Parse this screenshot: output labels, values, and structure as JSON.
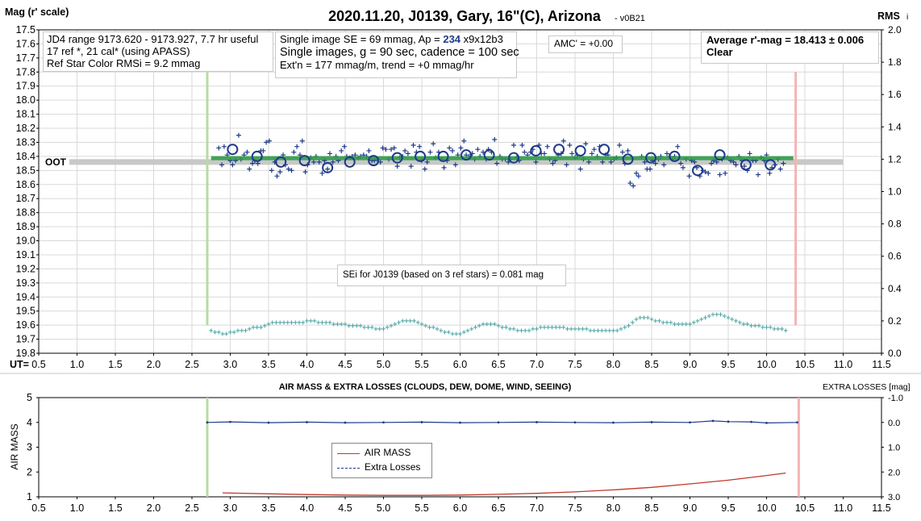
{
  "chart_data": [
    {
      "type": "scatter",
      "title": "2020.11.20, J0139, Gary, 16\"(C), Arizona",
      "version": "- v0B21",
      "ylabel": "Mag (r' scale)",
      "y2label": "RMS",
      "y2label_suffix": "i",
      "xlabel": "UT=",
      "xlim": [
        0.5,
        11.5
      ],
      "ylim": [
        17.5,
        19.8
      ],
      "y_inverted": true,
      "y2lim": [
        0.0,
        2.0
      ],
      "x_ticks": [
        "0.5",
        "1.0",
        "1.5",
        "2.0",
        "2.5",
        "3.0",
        "3.5",
        "4.0",
        "4.5",
        "5.0",
        "5.5",
        "6.0",
        "6.5",
        "7.0",
        "7.5",
        "8.0",
        "8.5",
        "9.0",
        "9.5",
        "10.0",
        "10.5",
        "11.0",
        "11.5"
      ],
      "y_ticks": [
        "17.5",
        "17.6",
        "17.7",
        "17.8",
        "17.9",
        "18.0",
        "18.1",
        "18.2",
        "18.3",
        "18.4",
        "18.5",
        "18.6",
        "18.7",
        "18.8",
        "18.9",
        "19.0",
        "19.1",
        "19.2",
        "19.3",
        "19.4",
        "19.5",
        "19.6",
        "19.7",
        "19.8"
      ],
      "y2_ticks": [
        "2.0",
        "1.8",
        "1.6",
        "1.4",
        "1.2",
        "1.0",
        "0.8",
        "0.6",
        "0.4",
        "0.2",
        "0.0"
      ],
      "grid": true,
      "oot_label": "OOT",
      "oot_mag": 18.44,
      "oot_x": [
        0.9,
        11.0
      ],
      "fit_mag": 18.413,
      "fit_x": [
        2.75,
        10.35
      ],
      "ingress_ut": 2.7,
      "egress_ut": 10.38,
      "marker_range": [
        19.6,
        17.8
      ],
      "single_images": {
        "x": [
          2.85,
          2.89,
          2.92,
          2.96,
          3.0,
          3.03,
          3.07,
          3.11,
          3.14,
          3.18,
          3.22,
          3.25,
          3.29,
          3.32,
          3.36,
          3.4,
          3.43,
          3.47,
          3.51,
          3.54,
          3.58,
          3.61,
          3.65,
          3.69,
          3.72,
          3.76,
          3.8,
          3.83,
          3.87,
          3.91,
          3.94,
          3.98,
          4.01,
          4.05,
          4.09,
          4.12,
          4.16,
          4.2,
          4.23,
          4.27,
          4.3,
          4.34,
          4.38,
          4.41,
          4.45,
          4.49,
          4.52,
          4.56,
          4.59,
          4.63,
          4.67,
          4.7,
          4.74,
          4.78,
          4.81,
          4.85,
          4.88,
          4.92,
          4.96,
          4.99,
          5.03,
          5.07,
          5.1,
          5.14,
          5.18,
          5.21,
          5.25,
          5.28,
          5.32,
          5.36,
          5.39,
          5.43,
          5.47,
          5.5,
          5.54,
          5.57,
          5.61,
          5.65,
          5.68,
          5.72,
          5.76,
          5.79,
          5.83,
          5.86,
          5.9,
          5.94,
          5.97,
          6.01,
          6.05,
          6.08,
          6.12,
          6.16,
          6.19,
          6.23,
          6.26,
          6.3,
          6.34,
          6.37,
          6.41,
          6.45,
          6.48,
          6.52,
          6.55,
          6.59,
          6.63,
          6.66,
          6.7,
          6.74,
          6.77,
          6.81,
          6.84,
          6.88,
          6.92,
          6.95,
          6.99,
          7.03,
          7.06,
          7.1,
          7.14,
          7.17,
          7.21,
          7.24,
          7.28,
          7.32,
          7.35,
          7.39,
          7.43,
          7.46,
          7.5,
          7.53,
          7.57,
          7.61,
          7.64,
          7.68,
          7.72,
          7.75,
          7.79,
          7.82,
          7.86,
          7.9,
          7.93,
          7.97,
          8.01,
          8.04,
          8.08,
          8.12,
          8.15,
          8.19,
          8.22,
          8.26,
          8.3,
          8.33,
          8.37,
          8.41,
          8.44,
          8.48,
          8.51,
          8.55,
          8.59,
          8.62,
          8.66,
          8.7,
          8.73,
          8.77,
          8.8,
          8.84,
          8.88,
          8.91,
          8.95,
          8.99,
          9.02,
          9.06,
          9.09,
          9.13,
          9.17,
          9.2,
          9.24,
          9.28,
          9.31,
          9.35,
          9.39,
          9.42,
          9.46,
          9.49,
          9.53,
          9.57,
          9.6,
          9.64,
          9.68,
          9.71,
          9.75,
          9.78,
          9.82,
          9.86,
          9.89,
          9.93,
          9.97,
          10.0,
          10.04,
          10.07,
          10.11,
          10.15,
          10.18,
          10.22
        ],
        "y": [
          18.34,
          18.46,
          18.33,
          18.39,
          18.43,
          18.46,
          18.43,
          18.25,
          18.42,
          18.39,
          18.37,
          18.49,
          18.45,
          18.43,
          18.45,
          18.36,
          18.36,
          18.3,
          18.29,
          18.5,
          18.44,
          18.54,
          18.51,
          18.39,
          18.46,
          18.49,
          18.5,
          18.37,
          18.33,
          18.39,
          18.29,
          18.51,
          18.46,
          18.41,
          18.44,
          18.4,
          18.44,
          18.52,
          18.43,
          18.49,
          18.38,
          18.44,
          18.4,
          18.43,
          18.36,
          18.33,
          18.4,
          18.41,
          18.4,
          18.39,
          18.41,
          18.4,
          18.39,
          18.4,
          18.36,
          18.43,
          18.43,
          18.42,
          18.44,
          18.34,
          18.35,
          18.42,
          18.35,
          18.34,
          18.47,
          18.41,
          18.4,
          18.36,
          18.38,
          18.47,
          18.32,
          18.37,
          18.33,
          18.43,
          18.49,
          18.44,
          18.37,
          18.31,
          18.41,
          18.37,
          18.42,
          18.48,
          18.43,
          18.34,
          18.36,
          18.46,
          18.39,
          18.34,
          18.29,
          18.39,
          18.4,
          18.38,
          18.42,
          18.35,
          18.4,
          18.37,
          18.42,
          18.35,
          18.37,
          18.28,
          18.45,
          18.4,
          18.42,
          18.42,
          18.44,
          18.42,
          18.32,
          18.41,
          18.43,
          18.32,
          18.37,
          18.39,
          18.37,
          18.35,
          18.44,
          18.32,
          18.38,
          18.38,
          18.33,
          18.42,
          18.45,
          18.43,
          18.39,
          18.38,
          18.29,
          18.46,
          18.32,
          18.38,
          18.41,
          18.39,
          18.49,
          18.42,
          18.31,
          18.44,
          18.38,
          18.35,
          18.4,
          18.33,
          18.44,
          18.39,
          18.39,
          18.44,
          18.42,
          18.41,
          18.32,
          18.37,
          18.45,
          18.36,
          18.59,
          18.61,
          18.52,
          18.54,
          18.4,
          18.44,
          18.49,
          18.49,
          18.43,
          18.45,
          18.42,
          18.4,
          18.46,
          18.38,
          18.4,
          18.42,
          18.4,
          18.33,
          18.45,
          18.48,
          18.42,
          18.54,
          18.43,
          18.44,
          18.48,
          18.54,
          18.5,
          18.51,
          18.52,
          18.45,
          18.43,
          18.44,
          18.53,
          18.42,
          18.52,
          18.41,
          18.43,
          18.44,
          18.46,
          18.4,
          18.43,
          18.47,
          18.5,
          18.38,
          18.43,
          18.43,
          18.53,
          18.41,
          18.43,
          18.39,
          18.52,
          18.48,
          18.46,
          18.42,
          18.49,
          18.45
        ]
      },
      "averaged_points": {
        "x": [
          3.03,
          3.35,
          3.66,
          3.97,
          4.27,
          4.56,
          4.87,
          5.18,
          5.48,
          5.78,
          6.08,
          6.38,
          6.7,
          6.99,
          7.29,
          7.57,
          7.88,
          8.19,
          8.49,
          8.8,
          9.1,
          9.39,
          9.73,
          10.05
        ],
        "y": [
          18.35,
          18.4,
          18.44,
          18.43,
          18.48,
          18.44,
          18.43,
          18.41,
          18.4,
          18.4,
          18.39,
          18.39,
          18.41,
          18.36,
          18.35,
          18.36,
          18.35,
          18.42,
          18.41,
          18.4,
          18.5,
          18.39,
          18.46,
          18.46
        ]
      },
      "rms_series": {
        "x": [
          2.75,
          2.8,
          2.85,
          2.9,
          2.95,
          3.0,
          3.05,
          3.1,
          3.15,
          3.2,
          3.25,
          3.3,
          3.35,
          3.4,
          3.45,
          3.5,
          3.55,
          3.6,
          3.65,
          3.7,
          3.75,
          3.8,
          3.85,
          3.9,
          3.95,
          4.0,
          4.05,
          4.1,
          4.15,
          4.2,
          4.25,
          4.3,
          4.35,
          4.4,
          4.45,
          4.5,
          4.55,
          4.6,
          4.65,
          4.7,
          4.75,
          4.8,
          4.85,
          4.9,
          4.95,
          5.0,
          5.05,
          5.1,
          5.15,
          5.2,
          5.25,
          5.3,
          5.35,
          5.4,
          5.45,
          5.5,
          5.55,
          5.6,
          5.65,
          5.7,
          5.75,
          5.8,
          5.85,
          5.9,
          5.95,
          6.0,
          6.05,
          6.1,
          6.15,
          6.2,
          6.25,
          6.3,
          6.35,
          6.4,
          6.45,
          6.5,
          6.55,
          6.6,
          6.65,
          6.7,
          6.75,
          6.8,
          6.85,
          6.9,
          6.95,
          7.0,
          7.05,
          7.1,
          7.15,
          7.2,
          7.25,
          7.3,
          7.35,
          7.4,
          7.45,
          7.5,
          7.55,
          7.6,
          7.65,
          7.7,
          7.75,
          7.8,
          7.85,
          7.9,
          7.95,
          8.0,
          8.05,
          8.1,
          8.15,
          8.2,
          8.25,
          8.3,
          8.35,
          8.4,
          8.45,
          8.5,
          8.55,
          8.6,
          8.65,
          8.7,
          8.75,
          8.8,
          8.85,
          8.9,
          8.95,
          9.0,
          9.05,
          9.1,
          9.15,
          9.2,
          9.25,
          9.3,
          9.35,
          9.4,
          9.45,
          9.5,
          9.55,
          9.6,
          9.65,
          9.7,
          9.75,
          9.8,
          9.85,
          9.9,
          9.95,
          10.0,
          10.05,
          10.1,
          10.15,
          10.2,
          10.25
        ],
        "y": [
          0.14,
          0.13,
          0.13,
          0.12,
          0.12,
          0.13,
          0.13,
          0.14,
          0.14,
          0.14,
          0.15,
          0.16,
          0.16,
          0.16,
          0.17,
          0.18,
          0.19,
          0.19,
          0.19,
          0.19,
          0.19,
          0.19,
          0.19,
          0.19,
          0.19,
          0.2,
          0.2,
          0.2,
          0.19,
          0.19,
          0.19,
          0.19,
          0.18,
          0.18,
          0.18,
          0.18,
          0.17,
          0.17,
          0.17,
          0.17,
          0.16,
          0.16,
          0.16,
          0.15,
          0.15,
          0.15,
          0.16,
          0.17,
          0.18,
          0.19,
          0.2,
          0.2,
          0.2,
          0.2,
          0.19,
          0.18,
          0.17,
          0.16,
          0.16,
          0.15,
          0.14,
          0.13,
          0.13,
          0.12,
          0.12,
          0.12,
          0.13,
          0.14,
          0.15,
          0.16,
          0.17,
          0.18,
          0.18,
          0.18,
          0.18,
          0.17,
          0.16,
          0.16,
          0.15,
          0.15,
          0.14,
          0.14,
          0.14,
          0.14,
          0.15,
          0.15,
          0.16,
          0.16,
          0.16,
          0.16,
          0.16,
          0.16,
          0.16,
          0.15,
          0.15,
          0.15,
          0.15,
          0.15,
          0.15,
          0.14,
          0.14,
          0.14,
          0.14,
          0.14,
          0.14,
          0.14,
          0.14,
          0.15,
          0.16,
          0.17,
          0.19,
          0.21,
          0.22,
          0.22,
          0.22,
          0.21,
          0.2,
          0.2,
          0.19,
          0.19,
          0.19,
          0.18,
          0.18,
          0.18,
          0.18,
          0.18,
          0.19,
          0.2,
          0.21,
          0.22,
          0.23,
          0.24,
          0.24,
          0.24,
          0.23,
          0.22,
          0.21,
          0.2,
          0.19,
          0.18,
          0.18,
          0.17,
          0.17,
          0.17,
          0.16,
          0.16,
          0.16,
          0.15,
          0.15,
          0.15,
          0.14
        ]
      },
      "annotations": {
        "box1": [
          "JD4 range 9173.620 - 9173.927, 7.7 hr useful",
          "17 ref *, 21 cal* (using APASS)",
          "Ref Star Color RMSi = 9.2 mmag"
        ],
        "box2_line1_prefix": "Single image SE = 69 mmag, Ap = ",
        "box2_ap": "234",
        "box2_line1_suffix": " x9x12b3",
        "box2_line2": "Single images, g = 90 sec, cadence = 100 sec",
        "box2_line3": "Ext'n = 177 mmag/m, trend = +0 mmag/hr",
        "amc": "AMC' = +0.00",
        "avg_line1": "Average r'-mag =  18.413 ± 0.006",
        "avg_line2": "Clear",
        "sei": "SEi for J0139 (based on 3 ref stars) = 0.081 mag"
      },
      "colors": {
        "points": "#1f3a8a",
        "fit": "#2e9a46",
        "oot": "#c8c8c8",
        "rms": "#4aa3a3",
        "ingress": "#b8dca0",
        "egress": "#f4b4b4",
        "ap_value": "#1f3a8a"
      }
    },
    {
      "type": "line",
      "title": "AIR MASS & EXTRA LOSSES (CLOUDS, DEW, DOME, WIND, SEEING)",
      "ylabel": "AIR MASS",
      "y2label": "EXTRA LOSSES",
      "y2label_unit": "[mag]",
      "xlim": [
        0.5,
        11.5
      ],
      "ylim": [
        1,
        5
      ],
      "y2lim": [
        -1.0,
        3.0
      ],
      "y2_inverted": true,
      "x_ticks": [
        "0.5",
        "1.0",
        "1.5",
        "2.0",
        "2.5",
        "3.0",
        "3.5",
        "4.0",
        "4.5",
        "5.0",
        "5.5",
        "6.0",
        "6.5",
        "7.0",
        "7.5",
        "8.0",
        "8.5",
        "9.0",
        "9.5",
        "10.0",
        "10.5",
        "11.0",
        "11.5"
      ],
      "y_ticks": [
        "1",
        "2",
        "3",
        "4",
        "5"
      ],
      "y2_ticks": [
        "3.0",
        "2.0",
        "1.0",
        "0.0",
        "-1.0"
      ],
      "grid": false,
      "legend": {
        "position": "center-left",
        "entries": [
          "AIR MASS",
          "Extra Losses"
        ]
      },
      "ingress_ut": 2.7,
      "egress_ut": 10.42,
      "series": [
        {
          "name": "AIR MASS",
          "color": "#c0392b",
          "x": [
            2.9,
            3.5,
            4.0,
            4.5,
            5.0,
            5.5,
            6.0,
            6.5,
            7.0,
            7.5,
            8.0,
            8.5,
            9.0,
            9.5,
            10.0,
            10.25
          ],
          "values": [
            1.16,
            1.12,
            1.09,
            1.07,
            1.06,
            1.06,
            1.07,
            1.1,
            1.14,
            1.2,
            1.28,
            1.38,
            1.52,
            1.67,
            1.86,
            1.96
          ]
        },
        {
          "name": "Extra Losses",
          "color": "#1f3a8a",
          "x": [
            2.7,
            3.0,
            3.5,
            4.0,
            4.5,
            5.0,
            5.5,
            6.0,
            6.5,
            7.0,
            7.5,
            8.0,
            8.5,
            9.0,
            9.3,
            9.5,
            9.8,
            10.0,
            10.4
          ],
          "values": [
            0.0,
            -0.02,
            0.01,
            -0.01,
            0.01,
            0.0,
            -0.01,
            0.01,
            0.0,
            -0.01,
            0.0,
            0.01,
            -0.01,
            0.0,
            -0.06,
            -0.03,
            -0.02,
            0.02,
            0.0
          ]
        }
      ]
    }
  ]
}
